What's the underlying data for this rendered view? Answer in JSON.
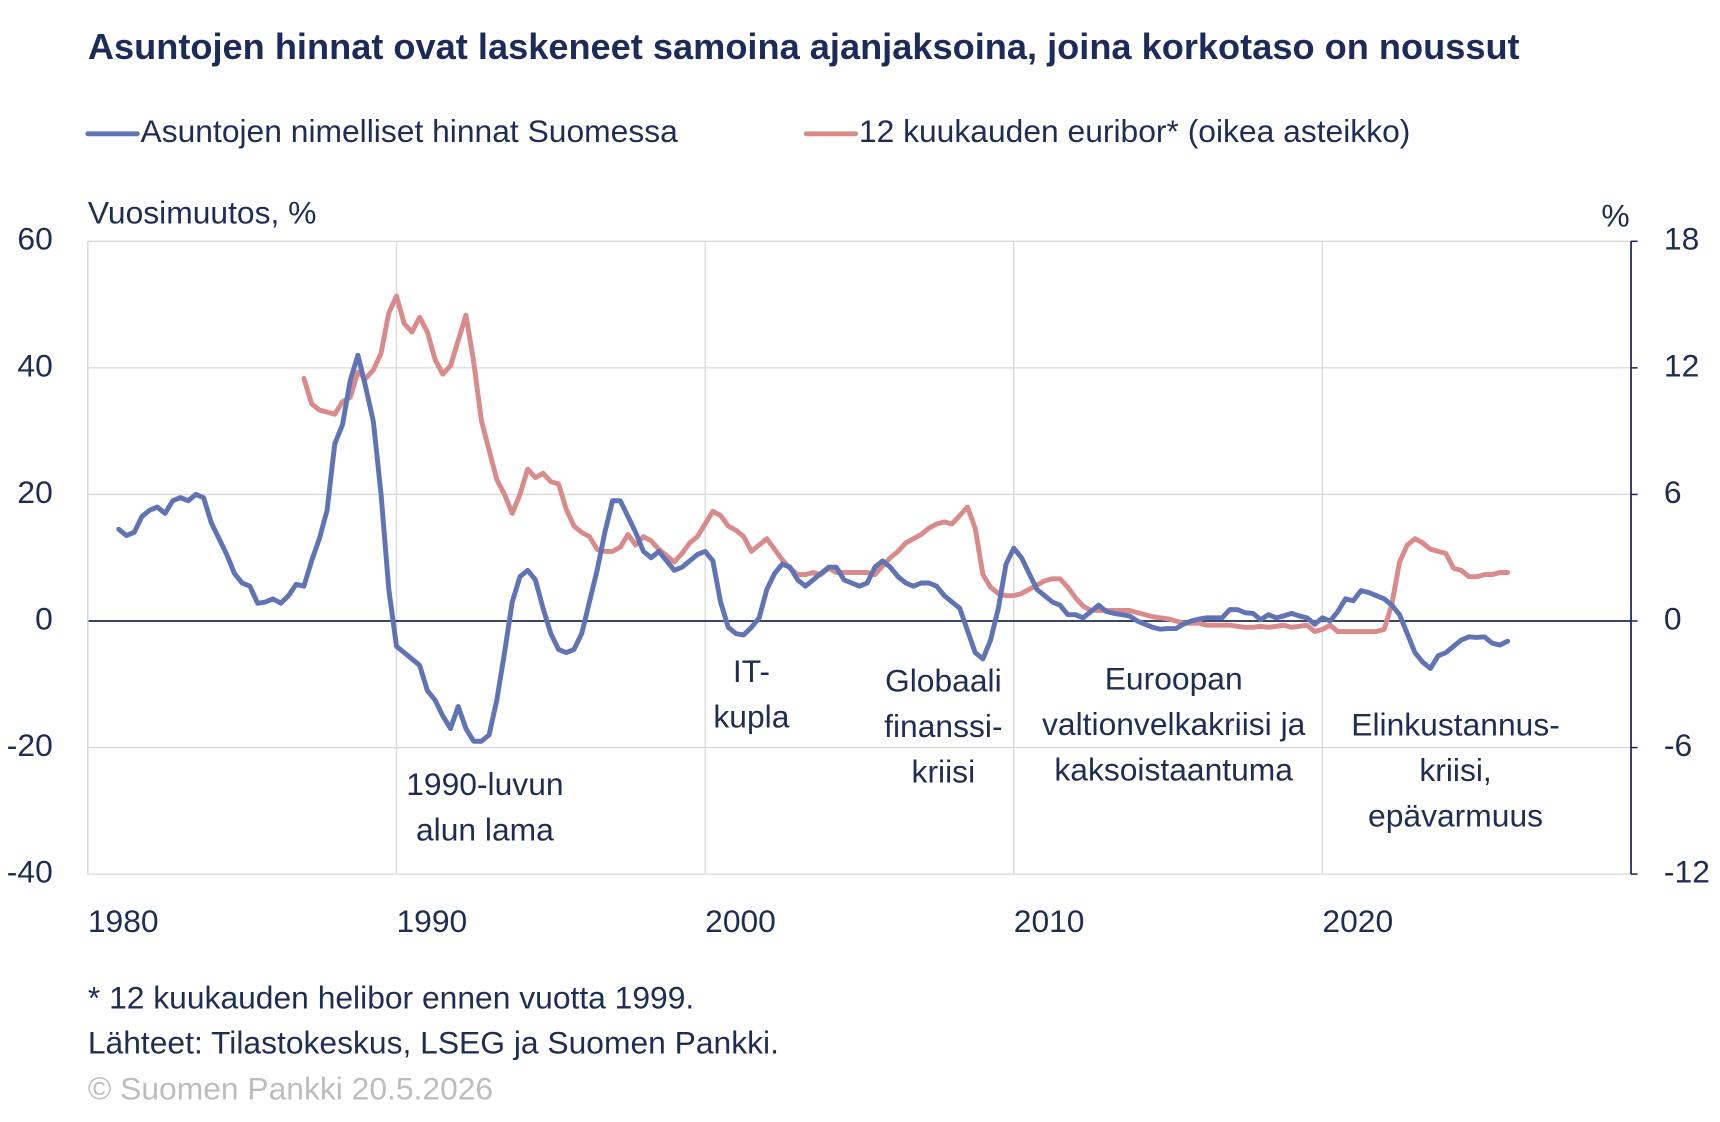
{
  "chart_data": {
    "type": "line",
    "title": "Asuntojen hinnat ovat laskeneet samoina ajanjaksoina, joina korkotaso on noussut",
    "y_label": "Vuosimuutos, %",
    "y2_label": "%",
    "footnotes": [
      "* 12 kuukauden helibor ennen vuotta 1999.",
      "Lähteet: Tilastokeskus, LSEG ja Suomen Pankki."
    ],
    "copyright": "© Suomen Pankki 20.5.2026",
    "xlim": [
      1980,
      2030
    ],
    "xticks": [
      1980,
      1990,
      2000,
      2010,
      2020
    ],
    "ylim": [
      -40,
      60
    ],
    "yticks": [
      -40,
      -20,
      0,
      20,
      40,
      60
    ],
    "y2lim": [
      -12,
      18
    ],
    "y2ticks": [
      -12,
      -6,
      0,
      6,
      12,
      18
    ],
    "grid": true,
    "x": [
      1981,
      1981.25,
      1981.5,
      1981.75,
      1982,
      1982.25,
      1982.5,
      1982.75,
      1983,
      1983.25,
      1983.5,
      1983.75,
      1984,
      1984.25,
      1984.5,
      1984.75,
      1985,
      1985.25,
      1985.5,
      1985.75,
      1986,
      1986.25,
      1986.5,
      1986.75,
      1987,
      1987.25,
      1987.5,
      1987.75,
      1988,
      1988.25,
      1988.5,
      1988.75,
      1989,
      1989.25,
      1989.5,
      1989.75,
      1990,
      1990.25,
      1990.5,
      1990.75,
      1991,
      1991.25,
      1991.5,
      1991.75,
      1992,
      1992.25,
      1992.5,
      1992.75,
      1993,
      1993.25,
      1993.5,
      1993.75,
      1994,
      1994.25,
      1994.5,
      1994.75,
      1995,
      1995.25,
      1995.5,
      1995.75,
      1996,
      1996.25,
      1996.5,
      1996.75,
      1997,
      1997.25,
      1997.5,
      1997.75,
      1998,
      1998.25,
      1998.5,
      1998.75,
      1999,
      1999.25,
      1999.5,
      1999.75,
      2000,
      2000.25,
      2000.5,
      2000.75,
      2001,
      2001.25,
      2001.5,
      2001.75,
      2002,
      2002.25,
      2002.5,
      2002.75,
      2003,
      2003.25,
      2003.5,
      2003.75,
      2004,
      2004.25,
      2004.5,
      2004.75,
      2005,
      2005.25,
      2005.5,
      2005.75,
      2006,
      2006.25,
      2006.5,
      2006.75,
      2007,
      2007.25,
      2007.5,
      2007.75,
      2008,
      2008.25,
      2008.5,
      2008.75,
      2009,
      2009.25,
      2009.5,
      2009.75,
      2010,
      2010.25,
      2010.5,
      2010.75,
      2011,
      2011.25,
      2011.5,
      2011.75,
      2012,
      2012.25,
      2012.5,
      2012.75,
      2013,
      2013.25,
      2013.5,
      2013.75,
      2014,
      2014.25,
      2014.5,
      2014.75,
      2015,
      2015.25,
      2015.5,
      2015.75,
      2016,
      2016.25,
      2016.5,
      2016.75,
      2017,
      2017.25,
      2017.5,
      2017.75,
      2018,
      2018.25,
      2018.5,
      2018.75,
      2019,
      2019.25,
      2019.5,
      2019.75,
      2020,
      2020.25,
      2020.5,
      2020.75,
      2021,
      2021.25,
      2021.5,
      2021.75,
      2022,
      2022.25,
      2022.5,
      2022.75,
      2023,
      2023.25,
      2023.5,
      2023.75,
      2024,
      2024.25,
      2024.5,
      2024.75,
      2025,
      2025.25,
      2025.5,
      2025.75,
      2026
    ],
    "series": [
      {
        "name": "Asuntojen nimelliset hinnat Suomessa",
        "color": "#6073b5",
        "values": [
          14.5,
          13.5,
          14,
          16.5,
          17.5,
          18,
          17,
          19,
          19.5,
          19,
          20,
          19.5,
          15.5,
          13,
          10.5,
          7.5,
          6,
          5.5,
          2.8,
          3,
          3.5,
          2.8,
          4,
          5.8,
          5.5,
          9.5,
          13,
          17.5,
          28,
          31,
          38,
          42,
          37,
          31.5,
          20,
          5,
          -4,
          -5,
          -6,
          -7,
          -11,
          -12.5,
          -15,
          -17,
          -13.5,
          -17,
          -19,
          -19,
          -18,
          -12.5,
          -5,
          3,
          7,
          8,
          6.5,
          2,
          -2,
          -4.5,
          -5,
          -4.5,
          -2,
          3,
          8,
          14,
          19,
          19,
          16.5,
          14,
          11,
          10,
          11,
          9.5,
          8,
          8.5,
          9.5,
          10.5,
          11,
          9.5,
          3,
          -1,
          -2,
          -2.2,
          -1,
          0.5,
          5,
          7.5,
          9,
          8.5,
          6.5,
          5.5,
          6.5,
          7.5,
          8.5,
          8.5,
          6.5,
          6,
          5.5,
          6,
          8.5,
          9.5,
          8.5,
          7,
          6,
          5.5,
          6,
          6,
          5.5,
          4,
          3,
          2,
          -1.5,
          -5,
          -6,
          -3,
          2,
          9,
          11.5,
          10,
          7.5,
          5,
          4,
          3,
          2.5,
          1,
          1,
          0.5,
          1.5,
          2.5,
          1.5,
          1.2,
          1,
          0.8,
          0,
          -0.5,
          -1,
          -1.3,
          -1.2,
          -1.2,
          -0.5,
          0,
          0.3,
          0.5,
          0.5,
          0.5,
          1.8,
          1.8,
          1.3,
          1.2,
          0.2,
          1,
          0.5,
          0.8,
          1.2,
          0.8,
          0.5,
          -0.5,
          0.5,
          0,
          1.5,
          3.5,
          3.2,
          4.8,
          4.5,
          4,
          3.5,
          2.5,
          1,
          -2,
          -5,
          -6.5,
          -7.5,
          -5.5,
          -5,
          -4,
          -3,
          -2.5,
          -2.6,
          -2.5,
          -3.5,
          -3.8,
          -3.2
        ]
      },
      {
        "name": "12 kuukauden euribor* (oikea asteikko)",
        "color": "#d98a8a",
        "axis": "y2",
        "values": [
          null,
          null,
          null,
          null,
          null,
          null,
          null,
          null,
          null,
          null,
          null,
          null,
          null,
          null,
          null,
          null,
          null,
          null,
          null,
          null,
          null,
          null,
          null,
          null,
          11.5,
          10.3,
          10,
          9.9,
          9.8,
          10.4,
          10.6,
          11.8,
          11.5,
          11.9,
          12.7,
          14.6,
          15.4,
          14.1,
          13.7,
          14.4,
          13.7,
          12.4,
          11.7,
          12.1,
          13.3,
          14.5,
          12.3,
          9.5,
          8.1,
          6.7,
          6,
          5.1,
          6,
          7.2,
          6.8,
          7,
          6.6,
          6.5,
          5.3,
          4.5,
          4.2,
          4,
          3.4,
          3.3,
          3.3,
          3.5,
          4.1,
          3.6,
          4,
          3.8,
          3.4,
          3.1,
          2.8,
          3.2,
          3.7,
          4,
          4.6,
          5.2,
          5,
          4.5,
          4.3,
          4,
          3.3,
          3.6,
          3.9,
          3.4,
          2.9,
          2.5,
          2.2,
          2.2,
          2.3,
          2.2,
          2.5,
          2.3,
          2.3,
          2.3,
          2.3,
          2.3,
          2.2,
          2.6,
          3,
          3.3,
          3.7,
          3.9,
          4.1,
          4.4,
          4.6,
          4.7,
          4.6,
          5,
          5.4,
          4.4,
          2.2,
          1.6,
          1.3,
          1.2,
          1.2,
          1.3,
          1.5,
          1.7,
          1.9,
          2,
          2,
          1.6,
          1.1,
          0.7,
          0.5,
          0.5,
          0.5,
          0.5,
          0.5,
          0.5,
          0.4,
          0.3,
          0.2,
          0.15,
          0.1,
          0,
          -0.1,
          -0.1,
          -0.1,
          -0.2,
          -0.2,
          -0.2,
          -0.2,
          -0.25,
          -0.3,
          -0.3,
          -0.25,
          -0.3,
          -0.25,
          -0.2,
          -0.3,
          -0.25,
          -0.2,
          -0.5,
          -0.4,
          -0.2,
          -0.5,
          -0.5,
          -0.5,
          -0.5,
          -0.5,
          -0.5,
          -0.4,
          0.8,
          2.8,
          3.6,
          3.9,
          3.7,
          3.4,
          3.3,
          3.2,
          2.5,
          2.4,
          2.1,
          2.1,
          2.2,
          2.2,
          2.3,
          2.3
        ]
      }
    ],
    "annotations": [
      {
        "lines": [
          "1990-luvun",
          "alun lama"
        ]
      },
      {
        "lines": [
          "IT-",
          "kupla"
        ]
      },
      {
        "lines": [
          "Globaali",
          "finanssi-",
          "kriisi"
        ]
      },
      {
        "lines": [
          "Euroopan",
          "valtionvelkakriisi ja",
          "kaksoistaantuma"
        ]
      },
      {
        "lines": [
          "Elinkustannus-",
          "kriisi,",
          "epävarmuus"
        ]
      }
    ]
  }
}
